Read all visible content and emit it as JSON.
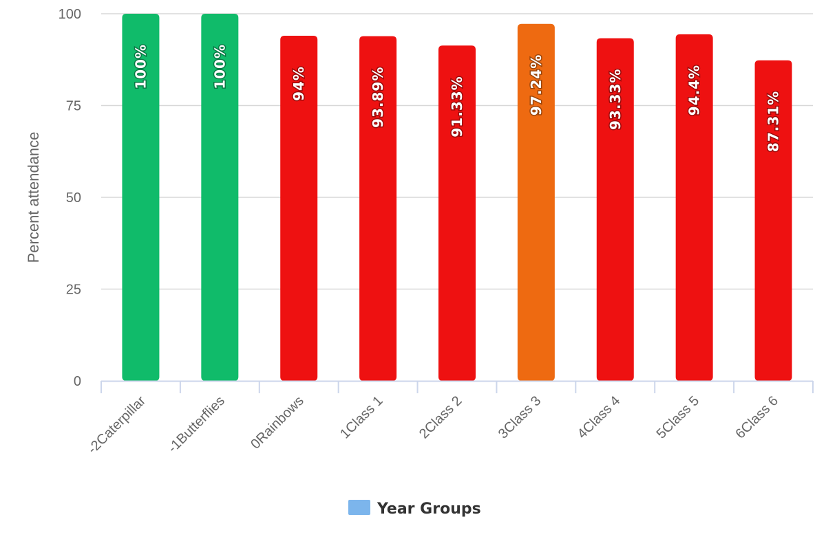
{
  "chart_data": {
    "type": "bar",
    "title": "",
    "xlabel": "",
    "ylabel": "Percent attendance",
    "ylim": [
      0,
      100
    ],
    "yticks": [
      "0",
      "25",
      "50",
      "75",
      "100"
    ],
    "grid": true,
    "legend": {
      "position": "bottom-center",
      "label": "Year Groups",
      "color": "#7cb5ec"
    },
    "categories": [
      "-2Caterpillar",
      "-1Butterflies",
      "0Rainbows",
      "1Class 1",
      "2Class 2",
      "3Class 3",
      "4Class 4",
      "5Class 5",
      "6Class 6"
    ],
    "series": [
      {
        "name": "Year Groups",
        "values": [
          100,
          100,
          94,
          93.89,
          91.33,
          97.24,
          93.33,
          94.4,
          87.31
        ],
        "labels": [
          "100%",
          "100%",
          "94%",
          "93.89%",
          "91.33%",
          "97.24%",
          "93.33%",
          "94.4%",
          "87.31%"
        ],
        "colors": [
          "#10bb6a",
          "#10bb6a",
          "#ee1111",
          "#ee1111",
          "#ee1111",
          "#ee6a11",
          "#ee1111",
          "#ee1111",
          "#ee1111"
        ]
      }
    ]
  }
}
